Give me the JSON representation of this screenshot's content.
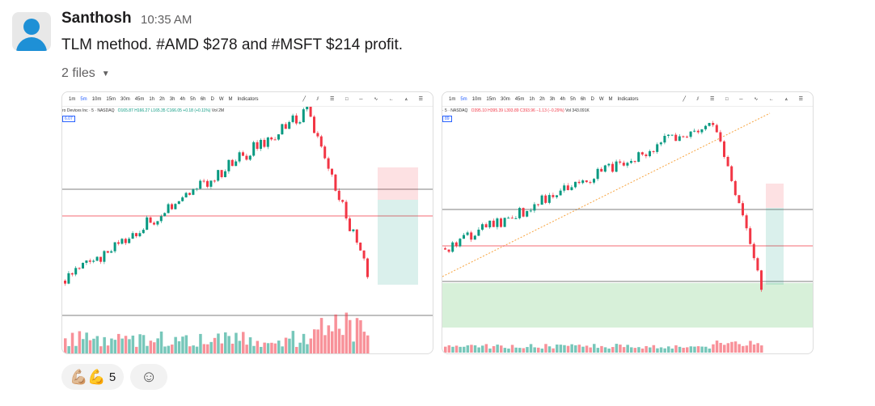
{
  "message": {
    "author": "Santhosh",
    "time": "10:35 AM",
    "text": "TLM method. #AMD $278 and #MSFT $214 profit.",
    "files_label": "2 files"
  },
  "toolbar": {
    "intervals": [
      "1m",
      "5m",
      "10m",
      "15m",
      "30m",
      "45m",
      "1h",
      "2h",
      "3h",
      "4h",
      "5h",
      "6h",
      "D",
      "W",
      "M"
    ],
    "active": "5m",
    "indicators_label": "Indicators"
  },
  "attachments": [
    {
      "legend": {
        "symbol": "ro Devices Inc · 5 · NASDAQ",
        "o": "O165.87",
        "h": "H166.27",
        "l": "L165.35",
        "c": "C166.05",
        "chg": "+0.18 (+0.11%)",
        "vol": "Vol 2M",
        "tag": "6.07"
      },
      "trend": "up"
    },
    {
      "legend": {
        "symbol": "· 5 · NASDAQ",
        "o": "O395.10",
        "h": "H395.39",
        "l": "L393.89",
        "c": "C393.96",
        "chg": "−1.13 (−0.29%)",
        "vol": "Vol 343.091K",
        "tag": "89"
      },
      "trend": "up"
    }
  ],
  "reactions": [
    {
      "emoji": "💪🏼💪",
      "count": "5"
    }
  ],
  "colors": {
    "up": "#089981",
    "down": "#f23645",
    "accent": "#2962ff"
  }
}
